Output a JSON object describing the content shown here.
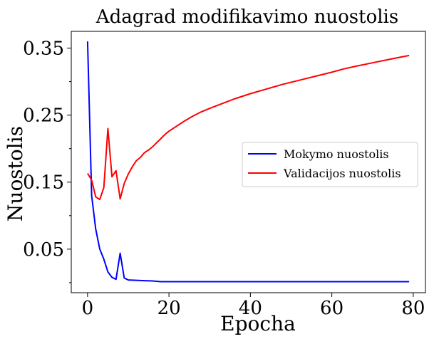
{
  "chart_data": {
    "type": "line",
    "title": "Adagrad modifikavimo nuostolis",
    "xlabel": "Epocha",
    "ylabel": "Nuostolis",
    "xlim": [
      -4,
      83
    ],
    "ylim": [
      -0.015,
      0.375
    ],
    "xticks": [
      0,
      20,
      40,
      60,
      80
    ],
    "xtick_labels": [
      "0",
      "20",
      "40",
      "60",
      "80"
    ],
    "yticks": [
      0.05,
      0.15,
      0.25,
      0.35
    ],
    "ytick_labels": [
      "0.05",
      "0.15",
      "0.25",
      "0.35"
    ],
    "y_minor_ticks": [
      0.0,
      0.1,
      0.2,
      0.3
    ],
    "grid": false,
    "legend_position": "center-right",
    "series": [
      {
        "name": "Mokymo nuostolis",
        "color": "#0000ff",
        "x": [
          0,
          1,
          2,
          3,
          4,
          5,
          6,
          7,
          8,
          9,
          10,
          12,
          14,
          16,
          18,
          20,
          25,
          30,
          35,
          40,
          45,
          50,
          55,
          60,
          65,
          70,
          75,
          79
        ],
        "values": [
          0.36,
          0.13,
          0.08,
          0.05,
          0.035,
          0.016,
          0.008,
          0.005,
          0.044,
          0.007,
          0.004,
          0.0035,
          0.003,
          0.0025,
          0.0015,
          0.0015,
          0.0015,
          0.0015,
          0.0015,
          0.0015,
          0.0015,
          0.0015,
          0.0015,
          0.0015,
          0.0015,
          0.0015,
          0.0015,
          0.0015
        ]
      },
      {
        "name": "Validacijos nuostolis",
        "color": "#ff0000",
        "x": [
          0,
          1,
          2,
          3,
          4,
          5,
          6,
          7,
          8,
          9,
          10,
          11,
          12,
          13,
          14,
          15,
          16,
          17,
          18,
          19,
          20,
          22,
          24,
          26,
          28,
          30,
          33,
          36,
          40,
          44,
          48,
          52,
          56,
          60,
          63,
          66,
          70,
          74,
          79
        ],
        "values": [
          0.163,
          0.153,
          0.128,
          0.124,
          0.142,
          0.23,
          0.158,
          0.167,
          0.125,
          0.148,
          0.162,
          0.173,
          0.182,
          0.187,
          0.194,
          0.198,
          0.203,
          0.209,
          0.215,
          0.221,
          0.226,
          0.234,
          0.242,
          0.249,
          0.255,
          0.26,
          0.267,
          0.274,
          0.282,
          0.289,
          0.296,
          0.302,
          0.308,
          0.314,
          0.319,
          0.323,
          0.328,
          0.333,
          0.339
        ]
      }
    ]
  }
}
